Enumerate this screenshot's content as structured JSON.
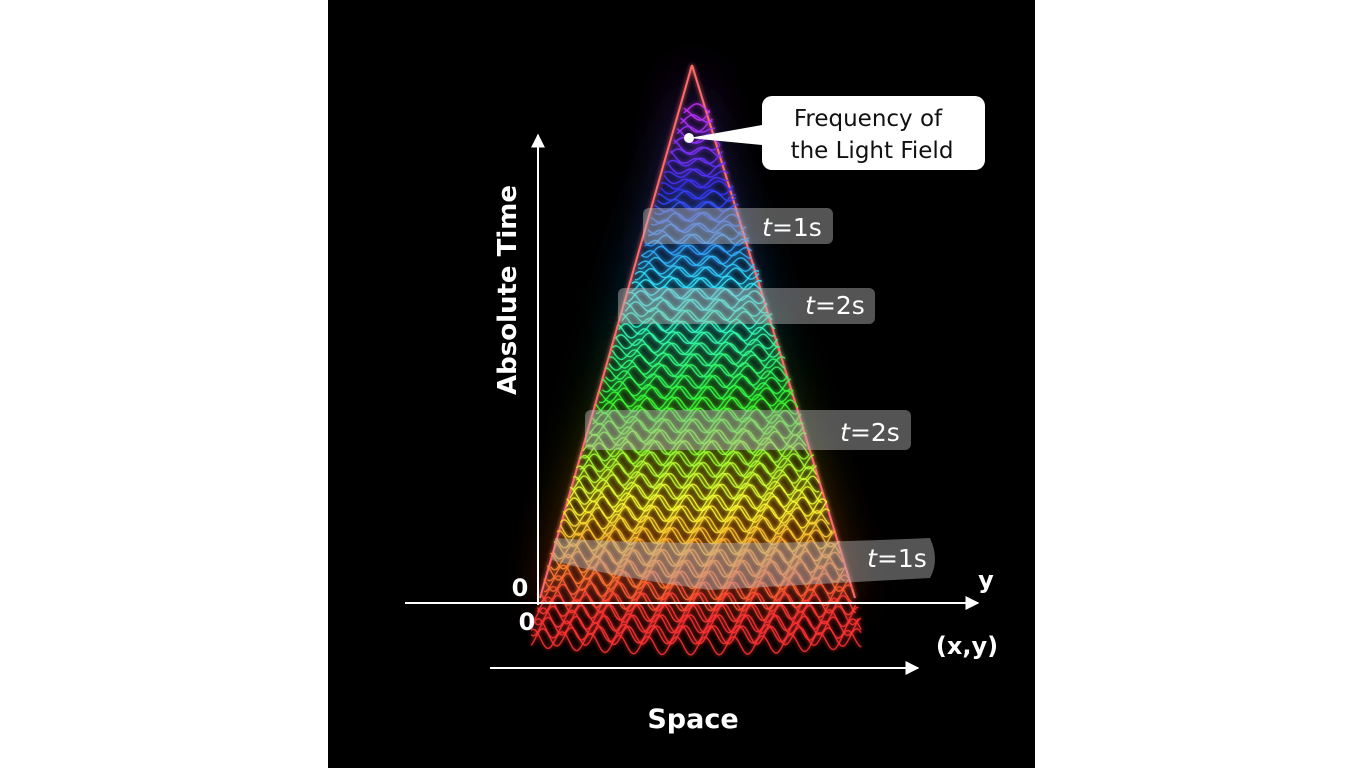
{
  "axes": {
    "vertical_label": "Absolute Time",
    "horizontal_label": "Space",
    "origin_upper": "0",
    "origin_lower": "0",
    "y_end": "y",
    "xy_end": "(x,y)"
  },
  "callout": {
    "lines": [
      "Frequency of",
      "the Light Field"
    ]
  },
  "slices": [
    {
      "var": "t",
      "rest": "=1s"
    },
    {
      "var": "t",
      "rest": "=2s"
    },
    {
      "var": "t",
      "rest": "=2s"
    },
    {
      "var": "t",
      "rest": "=1s"
    }
  ]
}
